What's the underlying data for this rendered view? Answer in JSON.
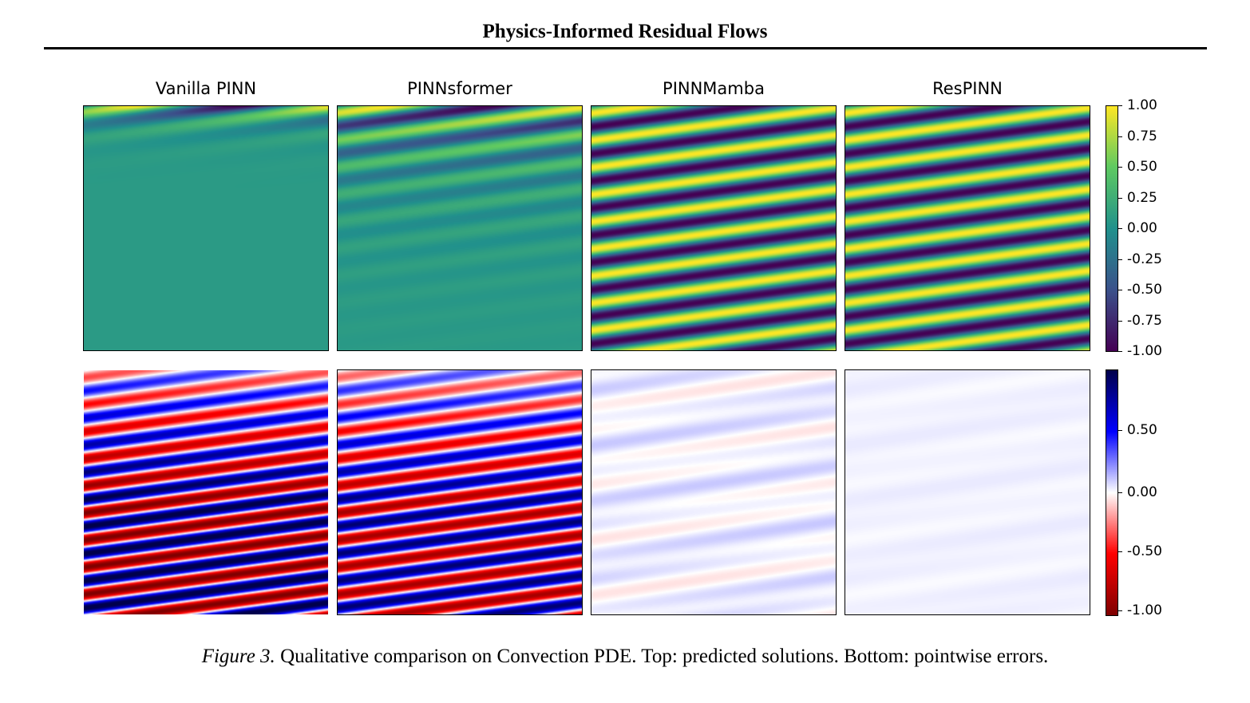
{
  "paper": {
    "running_head": "Physics-Informed Residual Flows",
    "caption_label": "Figure 3.",
    "caption_text": "Qualitative comparison on Convection PDE. Top: predicted solutions. Bottom: pointwise errors."
  },
  "chart_data": [
    {
      "type": "heatmap",
      "row": "predicted solutions",
      "colormap": "viridis",
      "vlim": [
        -1.0,
        1.0
      ],
      "colorbar_ticks": [
        "1.00",
        "0.75",
        "0.50",
        "0.25",
        "0.00",
        "-0.25",
        "-0.50",
        "-0.75",
        "-1.00"
      ],
      "panels": [
        {
          "title": "Vanilla PINN",
          "fidelity": 0.15
        },
        {
          "title": "PINNsformer",
          "fidelity": 0.45
        },
        {
          "title": "PINNMamba",
          "fidelity": 1.0
        },
        {
          "title": "ResPINN",
          "fidelity": 1.0
        }
      ]
    },
    {
      "type": "heatmap",
      "row": "pointwise errors",
      "colormap": "seismic_r",
      "vlim": [
        -1.0,
        0.95
      ],
      "colorbar_ticks": [
        "0.50",
        "0.00",
        "-0.50",
        "-1.00"
      ],
      "panels": [
        {
          "title": "Vanilla PINN",
          "error_scale": 1.0
        },
        {
          "title": "PINNsformer",
          "error_scale": 0.85
        },
        {
          "title": "PINNMamba",
          "error_scale": 0.04
        },
        {
          "title": "ResPINN",
          "error_scale": 0.008
        }
      ]
    }
  ],
  "colors": {
    "viridis": [
      "#440154",
      "#3b528b",
      "#21918c",
      "#5ec962",
      "#fde725"
    ],
    "seismic_r": [
      "#7f0000",
      "#ff0000",
      "#ffffff",
      "#0000ff",
      "#00004c"
    ]
  }
}
